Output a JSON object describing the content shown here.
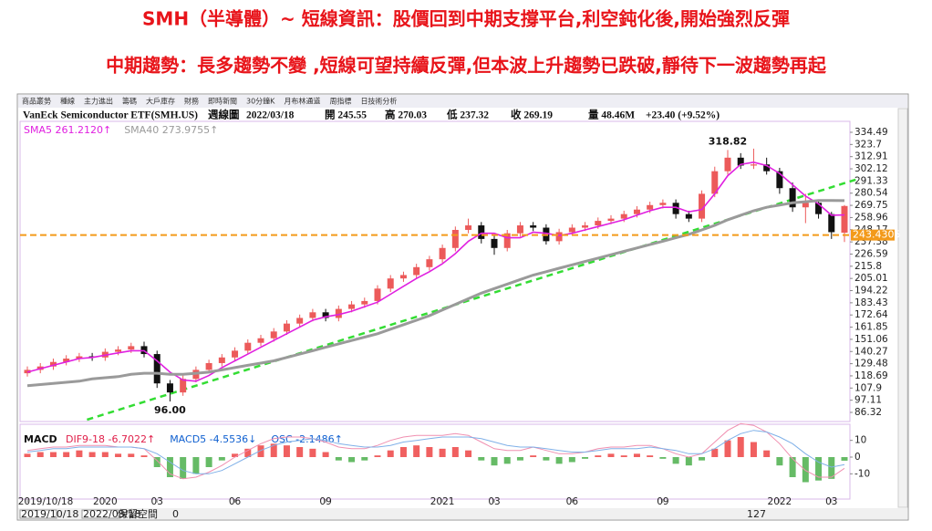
{
  "headline": [
    "SMH（半導體）~ 短線資訊：股價回到中期支撐平台,利空鈍化後,開始強烈反彈",
    "中期趨勢：長多趨勢不變 ,短線可望持續反彈,但本波上升趨勢已跌破,靜待下一波趨勢再起"
  ],
  "toolbar": [
    "商品叢勢",
    "種線",
    "主力進出",
    "籌碼",
    "大戶庫存",
    "財務",
    "即時新聞",
    "30分鐘K",
    "月布林通道",
    "周指標",
    "日技術分析"
  ],
  "chart_data": [
    {
      "type": "candlestick",
      "info": [
        "VanEck Semiconductor ETF(SMH.US)",
        "週線圖",
        "2022/03/18",
        "開 245.55",
        "高 270.03",
        "低 237.32",
        "收 269.19",
        "量 48.46M",
        "+23.40 (+9.52%)"
      ],
      "categories": [
        "2019/10/18",
        null,
        null,
        null,
        null,
        null,
        "2020",
        null,
        null,
        null,
        "03",
        null,
        null,
        null,
        null,
        null,
        "06",
        null,
        null,
        null,
        null,
        null,
        null,
        "09",
        null,
        null,
        null,
        null,
        null,
        null,
        null,
        null,
        "2021",
        null,
        null,
        null,
        "03",
        null,
        null,
        null,
        null,
        null,
        "06",
        null,
        null,
        null,
        null,
        null,
        null,
        "09",
        null,
        null,
        null,
        null,
        null,
        null,
        null,
        null,
        "2022",
        null,
        null,
        null,
        "03",
        null
      ],
      "open": [
        121,
        124,
        127,
        131,
        134,
        136,
        135,
        140,
        142,
        145,
        138,
        112,
        104,
        116,
        124,
        130,
        135,
        141,
        148,
        152,
        158,
        165,
        170,
        175,
        170,
        178,
        182,
        185,
        196,
        205,
        208,
        215,
        222,
        232,
        248,
        252,
        240,
        232,
        245,
        252,
        250,
        238,
        246,
        250,
        252,
        256,
        258,
        262,
        266,
        270,
        272,
        262,
        258,
        280,
        300,
        312,
        305,
        306,
        300,
        285,
        268,
        272,
        262,
        245.55
      ],
      "high": [
        127,
        130,
        134,
        137,
        139,
        139,
        143,
        145,
        148,
        149,
        141,
        115,
        119,
        127,
        133,
        138,
        144,
        151,
        155,
        161,
        168,
        173,
        178,
        178,
        181,
        185,
        188,
        199,
        208,
        211,
        218,
        225,
        235,
        251,
        258,
        255,
        243,
        248,
        255,
        255,
        253,
        249,
        253,
        255,
        259,
        261,
        265,
        269,
        273,
        275,
        275,
        265,
        283,
        304,
        318.82,
        316,
        320,
        312,
        303,
        290,
        280,
        275,
        264,
        270.03
      ],
      "low": [
        118,
        121,
        124,
        128,
        131,
        132,
        132,
        137,
        139,
        135,
        108,
        96,
        101,
        113,
        121,
        127,
        132,
        138,
        145,
        149,
        155,
        162,
        167,
        167,
        167,
        175,
        179,
        182,
        193,
        202,
        205,
        212,
        219,
        229,
        245,
        236,
        226,
        229,
        242,
        247,
        235,
        235,
        243,
        247,
        249,
        253,
        255,
        259,
        263,
        267,
        258,
        255,
        255,
        277,
        297,
        302,
        302,
        297,
        280,
        264,
        254,
        258,
        240,
        237.32
      ],
      "close": [
        124,
        127,
        131,
        134,
        136,
        135,
        140,
        142,
        145,
        138,
        112,
        104,
        116,
        124,
        130,
        135,
        141,
        148,
        152,
        158,
        165,
        170,
        175,
        170,
        178,
        182,
        185,
        196,
        205,
        208,
        215,
        222,
        232,
        248,
        252,
        240,
        232,
        245,
        252,
        250,
        238,
        246,
        250,
        252,
        256,
        258,
        262,
        266,
        270,
        272,
        262,
        258,
        280,
        300,
        312,
        305,
        306,
        300,
        285,
        268,
        272,
        262,
        246,
        269.19
      ],
      "up_color": "#ec5a5a",
      "down_color": "#111111",
      "series": [
        {
          "name": "SMA5 261.2120↑",
          "color": "#e020e0",
          "values": [
            122,
            125,
            128,
            131,
            134,
            135,
            137,
            139,
            141,
            141,
            132,
            122,
            115,
            114,
            119,
            126,
            132,
            138,
            144,
            150,
            156,
            162,
            168,
            171,
            173,
            176,
            180,
            184,
            191,
            198,
            205,
            211,
            218,
            227,
            238,
            245,
            245,
            241,
            241,
            246,
            245,
            243,
            245,
            248,
            251,
            254,
            257,
            261,
            265,
            268,
            268,
            264,
            266,
            280,
            296,
            306,
            308,
            305,
            298,
            288,
            278,
            271,
            261,
            261.212
          ]
        },
        {
          "name": "SMA40 273.9755↑",
          "color": "#9a9a9a",
          "values": [
            110,
            111,
            112,
            113,
            114,
            116,
            117,
            118,
            120,
            121,
            121,
            120,
            120,
            121,
            122,
            124,
            126,
            128,
            130,
            132,
            135,
            138,
            141,
            144,
            147,
            150,
            153,
            156,
            160,
            164,
            168,
            172,
            177,
            182,
            187,
            192,
            196,
            200,
            204,
            208,
            211,
            214,
            217,
            220,
            223,
            226,
            229,
            232,
            235,
            238,
            241,
            244,
            248,
            252,
            257,
            261,
            265,
            268,
            270,
            272,
            273,
            274,
            274,
            273.9755
          ]
        }
      ],
      "ylim": [
        79.85,
        342.57
      ],
      "yticks": [
        334.49,
        323.7,
        312.91,
        302.12,
        291.33,
        280.54,
        269.75,
        258.96,
        248.17,
        237.38,
        226.59,
        215.8,
        205.01,
        194.22,
        183.43,
        172.64,
        161.85,
        151.06,
        140.27,
        129.48,
        118.69,
        107.9,
        97.11,
        86.32
      ],
      "annotations": [
        {
          "text": "318.82",
          "value": 318.82,
          "index": 54
        },
        {
          "text": "96.00",
          "value": 96,
          "index": 11
        }
      ],
      "support": {
        "value": 243.4305,
        "label": "243.4305",
        "color": "#f39a1a"
      },
      "trendline": {
        "x": [
          4.6,
          64
        ],
        "y": [
          79.85,
          293
        ],
        "color": "#33dd33"
      }
    },
    {
      "type": "bar",
      "title": "MACD",
      "series": [
        {
          "name": "DIF9-18 -6.7022↑",
          "color": "#e0204a",
          "line_color": "#f08fb0",
          "values": [
            4,
            5,
            6,
            6,
            7,
            7,
            7,
            6,
            6,
            5,
            -2,
            -10,
            -13,
            -12,
            -9,
            -5,
            0,
            4,
            8,
            11,
            12,
            12,
            11,
            9,
            6,
            5,
            5,
            7,
            10,
            12,
            13,
            13,
            13,
            14,
            13,
            9,
            5,
            4,
            4,
            6,
            4,
            2,
            2,
            3,
            5,
            6,
            6,
            7,
            7,
            5,
            2,
            0,
            2,
            9,
            16,
            20,
            19,
            15,
            8,
            -1,
            -8,
            -12,
            -12,
            -6.7022
          ]
        },
        {
          "name": "MACD5 -4.5536↓",
          "color": "#1060d0",
          "line_color": "#7fb0e8",
          "values": [
            3,
            4,
            5,
            5,
            6,
            6,
            6,
            6,
            6,
            5,
            2,
            -3,
            -8,
            -10,
            -10,
            -8,
            -4,
            0,
            4,
            7,
            9,
            10,
            11,
            10,
            8,
            7,
            6,
            6,
            7,
            9,
            10,
            11,
            12,
            12,
            12,
            11,
            9,
            7,
            6,
            6,
            5,
            4,
            3,
            3,
            4,
            5,
            5,
            5,
            6,
            5,
            4,
            2,
            2,
            5,
            10,
            14,
            16,
            15,
            12,
            8,
            2,
            -3,
            -6,
            -4.5536
          ]
        },
        {
          "name": "OSC -2.1486↑",
          "color": "#1060d0",
          "pos_color": "#f06060",
          "neg_color": "#66bb66",
          "values": [
            2,
            3,
            3,
            3,
            4,
            3,
            3,
            2,
            2,
            1,
            -6,
            -12,
            -13,
            -10,
            -6,
            -2,
            2,
            5,
            7,
            8,
            7,
            6,
            5,
            3,
            -2,
            -3,
            -2,
            1,
            4,
            6,
            7,
            6,
            5,
            6,
            4,
            -2,
            -5,
            -4,
            -2,
            1,
            -2,
            -4,
            -3,
            -1,
            1,
            2,
            1,
            2,
            1,
            -1,
            -4,
            -5,
            -2,
            5,
            10,
            12,
            9,
            4,
            -5,
            -12,
            -15,
            -14,
            -13,
            -2.1486
          ]
        }
      ],
      "ylim": [
        -24,
        18
      ],
      "yticks": [
        10,
        0,
        -10
      ]
    }
  ],
  "scrollbar": {
    "start": "2019/10/18",
    "end": "2022/03/18",
    "label": "保留空間",
    "space": "0",
    "count": "127"
  }
}
